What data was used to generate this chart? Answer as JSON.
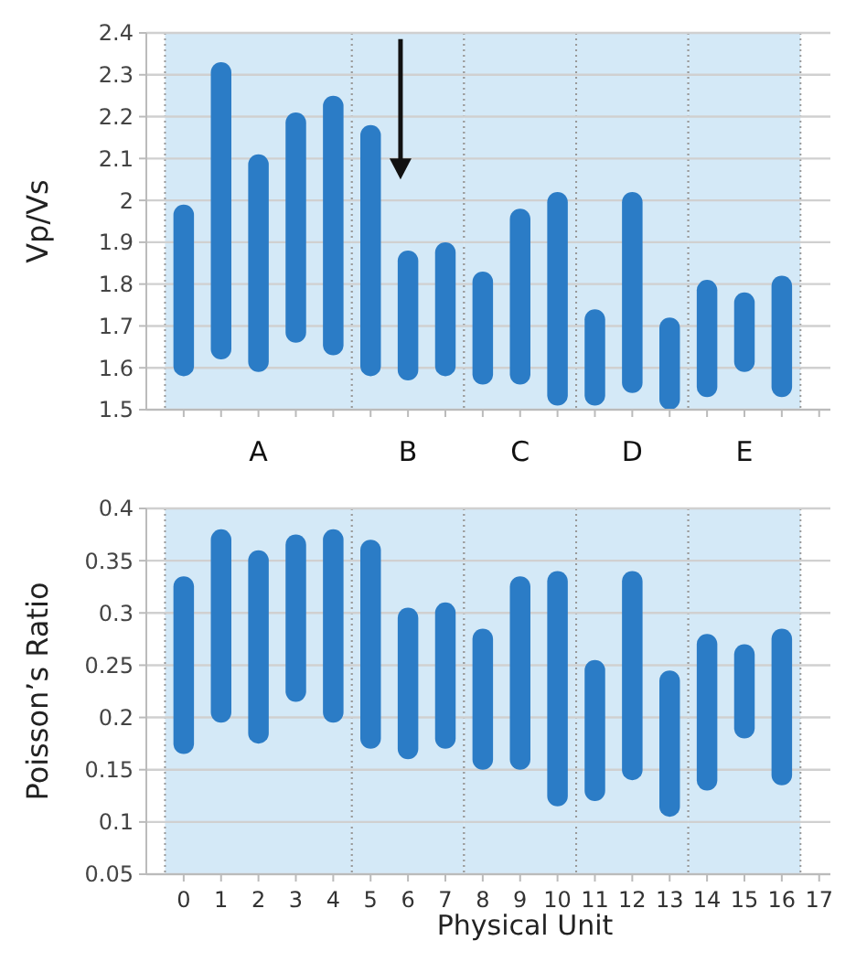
{
  "chart_data": [
    {
      "type": "bar",
      "ylabel": "Vp/Vs",
      "x": [
        0,
        1,
        2,
        3,
        4,
        5,
        6,
        7,
        8,
        9,
        10,
        11,
        12,
        13,
        14,
        15,
        16
      ],
      "xlim": [
        -1,
        17.3
      ],
      "xticks": [
        0,
        1,
        2,
        3,
        4,
        5,
        6,
        7,
        8,
        9,
        10,
        11,
        12,
        13,
        14,
        15,
        16,
        17
      ],
      "ylim": [
        1.5,
        2.4
      ],
      "yticks": [
        1.5,
        1.6,
        1.7,
        1.8,
        1.9,
        2,
        2.1,
        2.2,
        2.3,
        2.4
      ],
      "grid": "y",
      "tick_labels": "y",
      "series": [
        {
          "color": "#2b7cc6",
          "base": [
            1.58,
            1.62,
            1.59,
            1.66,
            1.63,
            1.58,
            1.57,
            1.58,
            1.56,
            1.56,
            1.51,
            1.51,
            1.54,
            1.5,
            1.53,
            1.59,
            1.53
          ],
          "values": [
            0.41,
            0.71,
            0.52,
            0.55,
            0.62,
            0.6,
            0.31,
            0.32,
            0.27,
            0.42,
            0.51,
            0.23,
            0.48,
            0.22,
            0.28,
            0.19,
            0.29
          ]
        }
      ],
      "bands": [
        {
          "axis": "x",
          "from": -0.5,
          "to": 4.5,
          "label": "A",
          "color": "#d4e9f7"
        },
        {
          "axis": "x",
          "from": 4.5,
          "to": 7.5,
          "label": "B",
          "color": "#d4e9f7"
        },
        {
          "axis": "x",
          "from": 7.5,
          "to": 10.5,
          "label": "C",
          "color": "#d4e9f7"
        },
        {
          "axis": "x",
          "from": 10.5,
          "to": 13.5,
          "label": "D",
          "color": "#d4e9f7"
        },
        {
          "axis": "x",
          "from": 13.5,
          "to": 16.5,
          "label": "E",
          "color": "#d4e9f7"
        }
      ]
    },
    {
      "type": "bar",
      "ylabel": "Poisson’s Ratio",
      "xlabel": "Physical Unit",
      "x": [
        0,
        1,
        2,
        3,
        4,
        5,
        6,
        7,
        8,
        9,
        10,
        11,
        12,
        13,
        14,
        15,
        16
      ],
      "xlim": [
        -1,
        17.3
      ],
      "xticks": [
        0,
        1,
        2,
        3,
        4,
        5,
        6,
        7,
        8,
        9,
        10,
        11,
        12,
        13,
        14,
        15,
        16,
        17
      ],
      "ylim": [
        0.05,
        0.4
      ],
      "yticks": [
        0.05,
        0.1,
        0.15,
        0.2,
        0.25,
        0.3,
        0.35,
        0.4
      ],
      "grid": "y",
      "series": [
        {
          "color": "#2b7cc6",
          "base": [
            0.165,
            0.195,
            0.175,
            0.215,
            0.195,
            0.17,
            0.16,
            0.17,
            0.15,
            0.15,
            0.115,
            0.12,
            0.14,
            0.105,
            0.13,
            0.18,
            0.135
          ],
          "values": [
            0.17,
            0.185,
            0.185,
            0.16,
            0.185,
            0.2,
            0.145,
            0.14,
            0.135,
            0.185,
            0.225,
            0.135,
            0.2,
            0.14,
            0.15,
            0.09,
            0.15
          ]
        }
      ],
      "bands": [
        {
          "axis": "x",
          "from": -0.5,
          "to": 4.5,
          "color": "#d4e9f7"
        },
        {
          "axis": "x",
          "from": 4.5,
          "to": 7.5,
          "color": "#d4e9f7"
        },
        {
          "axis": "x",
          "from": 7.5,
          "to": 10.5,
          "color": "#d4e9f7"
        },
        {
          "axis": "x",
          "from": 10.5,
          "to": 13.5,
          "color": "#d4e9f7"
        },
        {
          "axis": "x",
          "from": 13.5,
          "to": 16.5,
          "color": "#d4e9f7"
        }
      ]
    }
  ]
}
